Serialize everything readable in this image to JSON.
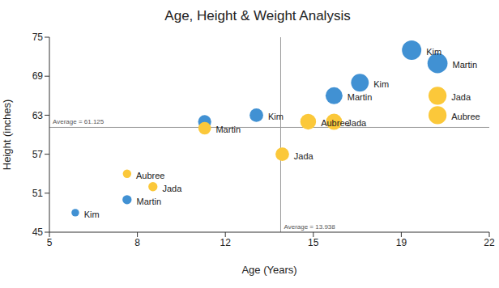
{
  "chart_data": {
    "type": "scatter",
    "title": "Age, Height & Weight Analysis",
    "x_label": "Age (Years)",
    "y_label": "Height (inches)",
    "xlim": [
      5,
      22
    ],
    "xticks": [
      5,
      {
        "value": 8.4,
        "label": "8"
      },
      {
        "value": 11.8,
        "label": "12"
      },
      {
        "value": 15.2,
        "label": "15"
      },
      {
        "value": 18.6,
        "label": "19"
      },
      22
    ],
    "ylim": [
      45,
      75
    ],
    "yticks": [
      45,
      51,
      57,
      63,
      69,
      75
    ],
    "grid": false,
    "annotations": [
      {
        "axis": "x",
        "value": 13.938,
        "label": "Average = 13.938"
      },
      {
        "axis": "y",
        "value": 61.125,
        "label": "Average = 61.125"
      }
    ],
    "series": [
      {
        "color": "#4191d3",
        "marker": "circle",
        "x": [
          6,
          8,
          11,
          13,
          16,
          17,
          19,
          20
        ],
        "y": [
          48,
          50,
          62,
          63,
          66,
          68,
          73,
          71
        ],
        "sizes": [
          45,
          55,
          90,
          95,
          135,
          145,
          170,
          180
        ],
        "labels": [
          "Kim",
          "Martin",
          null,
          "Kim",
          "Martin",
          "Kim",
          "Kim",
          "Martin"
        ]
      },
      {
        "color": "#fbc83a",
        "marker": "circle",
        "x": [
          8,
          9,
          11,
          14,
          15,
          16,
          20,
          20
        ],
        "y": [
          54,
          52,
          61,
          57,
          62,
          62,
          66,
          63
        ],
        "sizes": [
          50,
          55,
          85,
          95,
          120,
          125,
          150,
          150
        ],
        "labels": [
          "Aubree",
          "Jada",
          "Martin",
          "Jada",
          "Aubree",
          "Jada",
          "Jada",
          "Aubree"
        ]
      }
    ]
  }
}
